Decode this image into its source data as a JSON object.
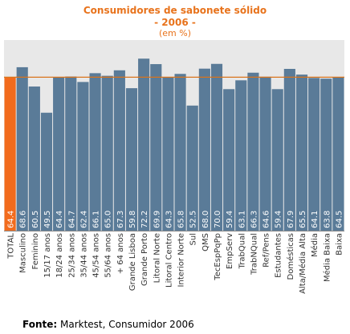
{
  "title": "Consumidores de sabonete sólido",
  "subtitle": "- 2006 -",
  "unit_note": "(em %)",
  "source_label": "Fonte:",
  "source_text": "Marktest, Consumidor 2006",
  "colors": {
    "total_bar": "#f26b1d",
    "bar": "#5a7b98",
    "reference_line": "#d9741c",
    "plot_bg": "#e8e8e8",
    "title": "#e8731c"
  },
  "chart_data": {
    "type": "bar",
    "categories": [
      "TOTAL",
      "Masculino",
      "Feminino",
      "15/17 anos",
      "18/24 anos",
      "25/34 anos",
      "35/44 anos",
      "45/54 anos",
      "55/64 anos",
      "+ 64 anos",
      "Grande Lisboa",
      "Grande Porto",
      "Litoral Norte",
      "Litoral Centro",
      "Interior Norte",
      "Sul",
      "QMS",
      "TecEspPqPp",
      "EmpServ",
      "TrabQual",
      "TrabNQual",
      "Ref/Pens",
      "Estudantes",
      "Domésticas",
      "Alta/Média Alta",
      "Média",
      "Média Baixa",
      "Baixa"
    ],
    "values": [
      64.4,
      68.6,
      60.5,
      49.5,
      64.4,
      64.7,
      62.4,
      66.1,
      65.0,
      67.3,
      59.8,
      72.2,
      69.9,
      64.3,
      65.8,
      52.5,
      68.0,
      70.0,
      59.4,
      63.1,
      66.3,
      64.6,
      59.4,
      67.9,
      65.5,
      64.1,
      63.8,
      64.5
    ],
    "value_labels": [
      "64.4",
      "68.6",
      "60.5",
      "49.5",
      "64.4",
      "64.7",
      "62.4",
      "66.1",
      "65.0",
      "67.3",
      "59.8",
      "72.2",
      "69.9",
      "64.3",
      "65.8",
      "52.5",
      "68.0",
      "70.0",
      "59.4",
      "63.1",
      "66.3",
      "64.6",
      "59.4",
      "67.9",
      "65.5",
      "64.1",
      "63.8",
      "64.5"
    ],
    "reference_line": 64.4,
    "ylim": [
      0,
      80
    ],
    "grid": false,
    "title": "Consumidores de sabonete sólido",
    "xlabel": "",
    "ylabel": ""
  }
}
